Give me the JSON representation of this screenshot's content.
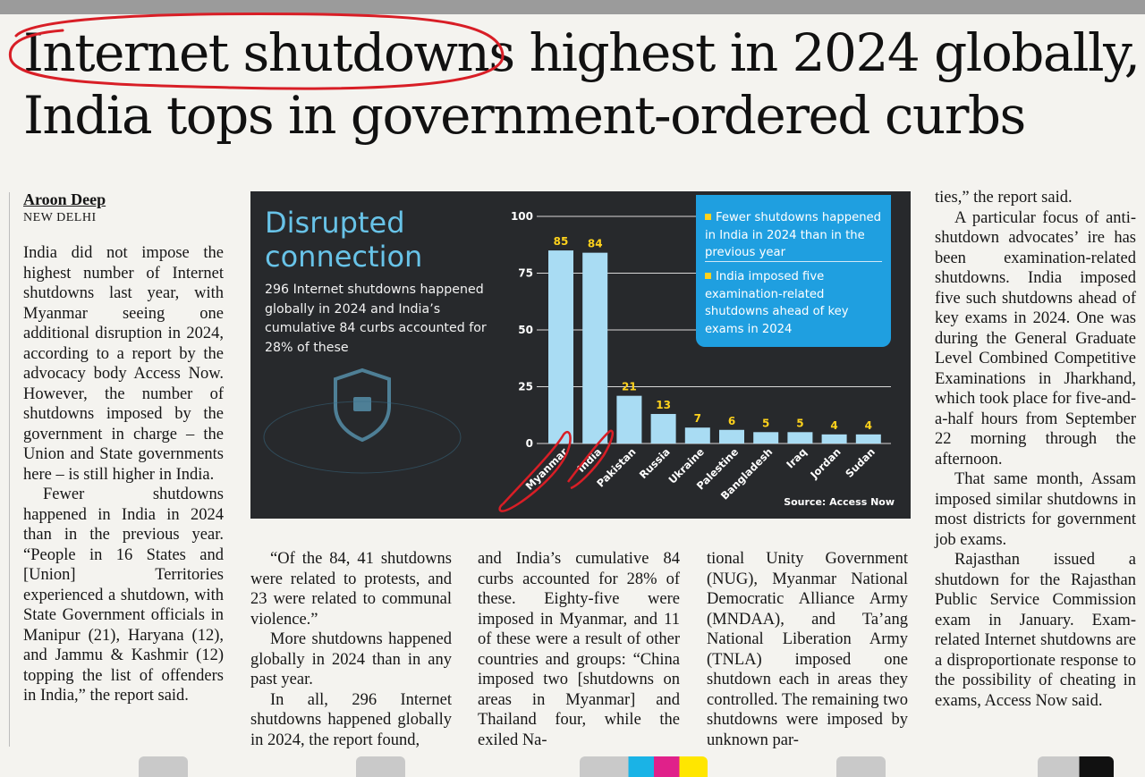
{
  "article": {
    "headline_line1": "Internet shutdowns highest in 2024 globally,",
    "headline_line2": "India tops in government-ordered curbs",
    "byline": "Aroon Deep",
    "dateline": "NEW DELHI",
    "col1": [
      "India did not impose the highest number of Internet shutdowns last year, with Myanmar seeing one additional disruption in 2024, according to a report by the advocacy body Access Now. However, the number of shutdowns imposed by the government in charge – the Union and State governments here – is still higher in India.",
      "Fewer shutdowns happened in India in 2024 than in the previous year. “People in 16 States and [Union] Territories experienced a shutdown, with State Government officials in Manipur (21), Haryana (12), and Jammu & Kashmir (12) topping the list of offenders in India,” the report said."
    ],
    "col2": [
      "“Of the 84, 41 shutdowns were related to protests, and 23 were related to communal violence.”",
      "More shutdowns happened globally in 2024 than in any past year.",
      "In all, 296 Internet shutdowns happened globally in 2024, the report found,"
    ],
    "col3": [
      "and India’s cumulative 84 curbs accounted for 28% of these. Eighty-five were imposed in Myanmar, and 11 of these were a result of other countries and groups: “China imposed two [shutdowns on areas in Myanmar] and Thailand four, while the exiled Na-"
    ],
    "col4": [
      "tional Unity Government (NUG), Myanmar National Democratic Alliance Army (MNDAA), and Ta’ang National Liberation Army (TNLA) imposed one shutdown each in areas they controlled. The remaining two shutdowns were imposed by unknown par-"
    ],
    "col5": [
      "ties,” the report said.",
      "A particular focus of anti-shutdown advocates’ ire has been examination-related shutdowns. India imposed five such shutdowns ahead of key exams in 2024. One was during the General Graduate Level Combined Competitive Examinations in Jharkhand, which took place for five-and-a-half hours from September 22 morning through the afternoon.",
      "That same month, Assam imposed similar shutdowns in most districts for government job exams.",
      "Rajasthan issued a shutdown for the Rajasthan Public Service Commission exam in January. Exam-related Internet shutdowns are a disproportionate response to the possibility of cheating in exams, Access Now said."
    ]
  },
  "graphic": {
    "title_line1": "Disrupted",
    "title_line2": "connection",
    "subtitle": "296 Internet shutdowns happened globally in 2024 and India’s cumulative 84 curbs accounted for 28% of these",
    "callout_1": "Fewer shutdowns happened in India in 2024 than in the previous year",
    "callout_2": "India imposed five examination-related shutdowns ahead of key exams in 2024",
    "source": "Source: Access Now"
  },
  "colors": {
    "bar": "#a9dcf3",
    "label": "#ffd21c",
    "chart_bg": "#27292c",
    "callout_bg": "#1f9fe0",
    "title": "#68c3e8",
    "ink_markup": "#d81e26"
  },
  "chart_data": {
    "type": "bar",
    "categories": [
      "Myanmar",
      "India",
      "Pakistan",
      "Russia",
      "Ukraine",
      "Palestine",
      "Bangladesh",
      "Iraq",
      "Jordan",
      "Sudan"
    ],
    "values": [
      85,
      84,
      21,
      13,
      7,
      6,
      5,
      5,
      4,
      4
    ],
    "yticks": [
      0,
      25,
      50,
      75,
      100
    ],
    "ylim": [
      0,
      100
    ],
    "title": "Disrupted connection",
    "xlabel": "",
    "ylabel": "",
    "grid": true
  }
}
